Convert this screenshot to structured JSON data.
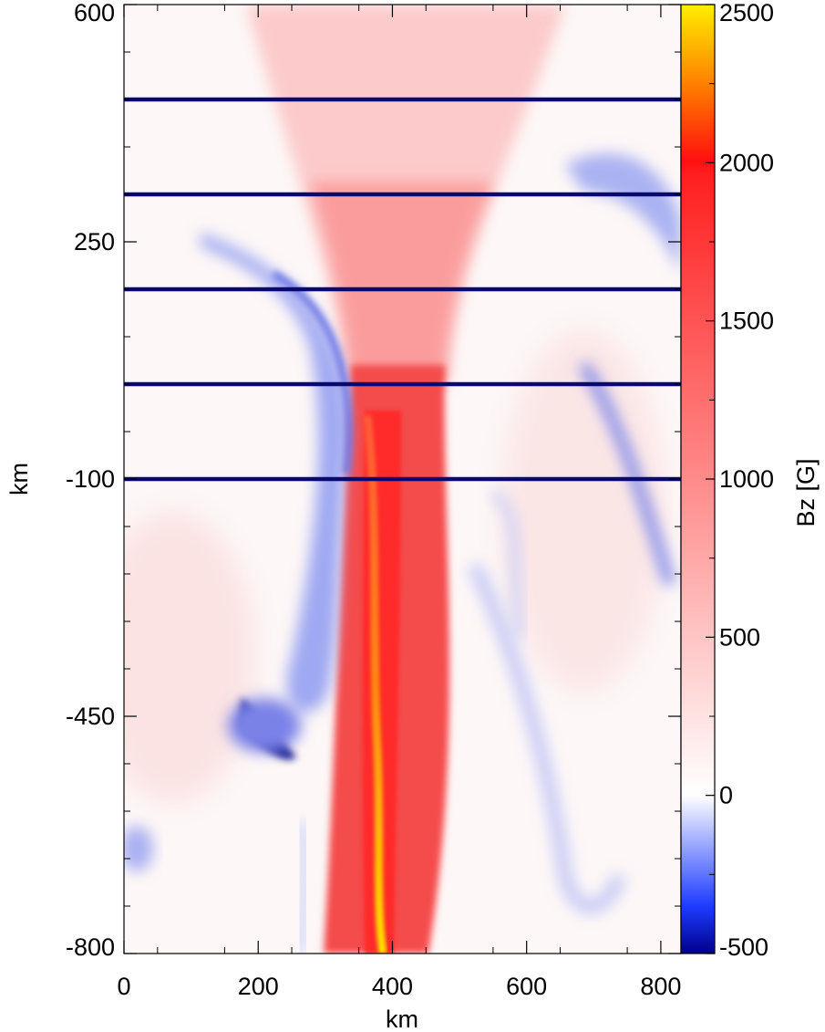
{
  "chart_data": {
    "type": "heatmap",
    "title": "",
    "xlabel": "km",
    "ylabel": "km",
    "xlim": [
      0,
      830
    ],
    "ylim": [
      -800,
      600
    ],
    "x_ticks": [
      0,
      200,
      400,
      600,
      800
    ],
    "x_tick_labels": [
      "0",
      "200",
      "400",
      "600",
      "800"
    ],
    "y_ticks": [
      600,
      250,
      -100,
      -450,
      -800
    ],
    "y_tick_labels": [
      "600",
      "250",
      "-100",
      "-450",
      "-800"
    ],
    "colorbar": {
      "label": "Bz [G]",
      "range": [
        -500,
        2500
      ],
      "ticks": [
        2500,
        2000,
        1500,
        1000,
        500,
        0,
        -500
      ],
      "tick_labels": [
        "2500",
        "2000",
        "1500",
        "1000",
        "500",
        "0",
        "-500"
      ],
      "colors": [
        "#00008b",
        "#1e3cff",
        "#ffffff",
        "#ff2020",
        "#ffea00"
      ]
    },
    "horizontal_lines_y": [
      460,
      320,
      180,
      40,
      -100
    ],
    "line_color": "#0a0a6e",
    "field_features": [
      {
        "name": "flux tube core",
        "x_center": 390,
        "y_range": [
          -800,
          100
        ],
        "bz_max": 2500
      },
      {
        "name": "flux tube canopy",
        "x_range": [
          200,
          600
        ],
        "y_top": 600,
        "bz": 300
      },
      {
        "name": "negative polarity sheath left",
        "x": 320,
        "y_range": [
          -400,
          220
        ],
        "bz": -300
      },
      {
        "name": "negative polarity patch",
        "x": 230,
        "y": -480,
        "bz": -500
      },
      {
        "name": "negative polarity right",
        "x": 750,
        "y_range": [
          -200,
          400
        ],
        "bz": -250
      }
    ]
  }
}
